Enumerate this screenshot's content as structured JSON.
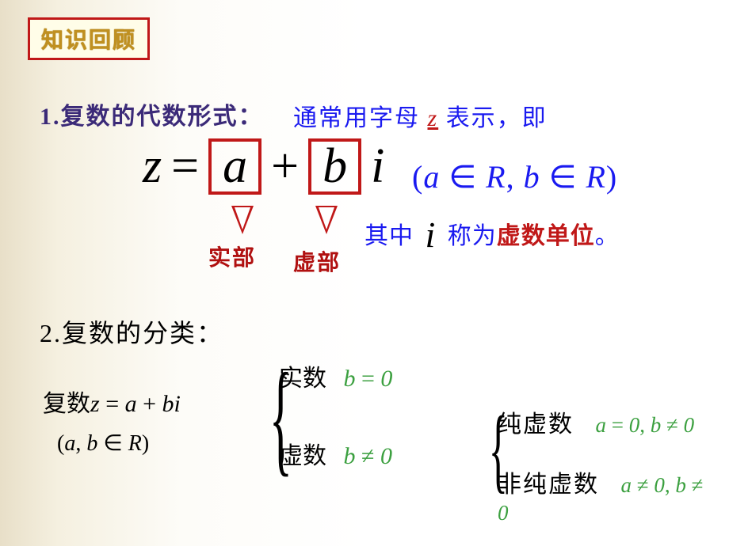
{
  "colors": {
    "accent_red": "#c01818",
    "accent_blue": "#1a1af0",
    "accent_green": "#3ca040",
    "heading_purple": "#3b2a78",
    "badge_text": "#c09020",
    "badge_bg": "#fffde8",
    "body_text": "#000000",
    "background_gradient_start": "#e8dfc8",
    "background_gradient_end": "#ffffff"
  },
  "typography": {
    "body_font": "SimSun, Times New Roman, serif",
    "math_font": "Times New Roman",
    "badge_fontsize": 28,
    "heading_fontsize": 30,
    "formula_fontsize": 62,
    "domain_fontsize": 40,
    "classification_fontsize": 30
  },
  "badge": {
    "label": "知识回顾"
  },
  "section1": {
    "title": "1.复数的代数形式：",
    "desc_prefix": "通常用字母 ",
    "desc_var": "z",
    "desc_suffix": " 表示，即",
    "formula": {
      "lhs": "z",
      "eq": "=",
      "a": "a",
      "plus": "+",
      "b": "b",
      "i": "i"
    },
    "domain": "(a ∈ R, b ∈ R)",
    "callout_a": "实部",
    "callout_b": "虚部",
    "unit_prefix": "其中 ",
    "unit_i": "i",
    "unit_mid": " 称为",
    "unit_red": "虚数单位",
    "unit_suffix": "。"
  },
  "section2": {
    "title": "2.复数的分类：",
    "lhs_cn": "复数",
    "lhs_math": "z = a + bi",
    "lhs_domain": "(a, b ∈ R)",
    "branches": {
      "real": {
        "label": "实数",
        "cond": "b = 0"
      },
      "imag": {
        "label": "虚数",
        "cond": "b ≠ 0",
        "sub": {
          "pure": {
            "label": "纯虚数",
            "cond": "a = 0, b ≠ 0"
          },
          "npure": {
            "label": "非纯虚数",
            "cond": "a ≠ 0, b ≠ 0"
          }
        }
      }
    }
  }
}
